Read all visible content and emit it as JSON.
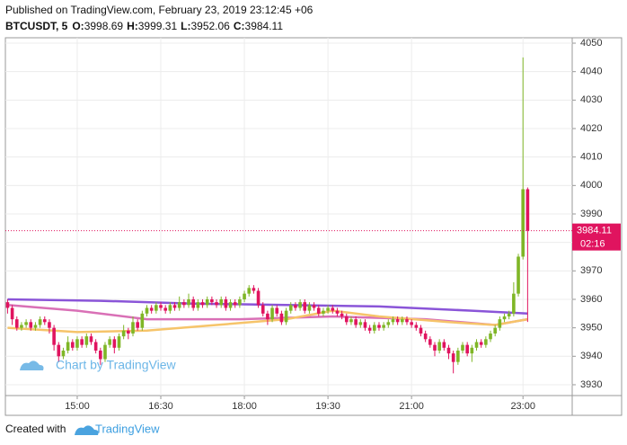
{
  "chart_data": {
    "type": "candlestick",
    "published": "Published on TradingView.com, February 23, 2019 23:12:45 +06",
    "symbol": "BTCUSDT, 5",
    "ohlc_labels": [
      "O:",
      "H:",
      "L:",
      "C:"
    ],
    "countdown": "02:16",
    "watermark": "Chart by TradingView",
    "footer": {
      "created_with": "Created with",
      "brand": "TradingView"
    },
    "up_color": "#7fb626",
    "down_color": "#e0145f",
    "xlim": [
      -0.47,
      121.6
    ],
    "xticks": [
      {
        "value": 15,
        "label": "15:00"
      },
      {
        "value": 33,
        "label": "16:30"
      },
      {
        "value": 51,
        "label": "18:00"
      },
      {
        "value": 69,
        "label": "19:30"
      },
      {
        "value": 87,
        "label": "21:00"
      },
      {
        "value": 111,
        "label": "23:00"
      }
    ],
    "ylim": [
      3926.2,
      4051.9
    ],
    "yticks": [
      3930,
      3940,
      3950,
      3960,
      3970,
      3980,
      3990,
      4000,
      4010,
      4020,
      4030,
      4040,
      4050
    ],
    "grid": true,
    "candles": [
      [
        3959,
        3960,
        3955,
        3957
      ],
      [
        3957,
        3958,
        3951,
        3953
      ],
      [
        3953,
        3954,
        3949,
        3950
      ],
      [
        3950,
        3952,
        3949,
        3951
      ],
      [
        3951,
        3953,
        3950,
        3952
      ],
      [
        3952,
        3953,
        3949,
        3950
      ],
      [
        3950,
        3952,
        3949,
        3951
      ],
      [
        3951,
        3954,
        3950,
        3953
      ],
      [
        3953,
        3954,
        3951,
        3952
      ],
      [
        3952,
        3953,
        3948,
        3950
      ],
      [
        3950,
        3951,
        3942,
        3944
      ],
      [
        3944,
        3945,
        3938,
        3940
      ],
      [
        3940,
        3943,
        3939,
        3942
      ],
      [
        3942,
        3947,
        3941,
        3945
      ],
      [
        3945,
        3946,
        3942,
        3943
      ],
      [
        3943,
        3947,
        3942,
        3946
      ],
      [
        3946,
        3947,
        3943,
        3944
      ],
      [
        3944,
        3948,
        3943,
        3947
      ],
      [
        3947,
        3948,
        3944,
        3945
      ],
      [
        3945,
        3946,
        3941,
        3942
      ],
      [
        3942,
        3943,
        3937,
        3939
      ],
      [
        3939,
        3945,
        3938,
        3944
      ],
      [
        3944,
        3947,
        3943,
        3946
      ],
      [
        3946,
        3947,
        3941,
        3943
      ],
      [
        3943,
        3948,
        3942,
        3947
      ],
      [
        3947,
        3951,
        3946,
        3949
      ],
      [
        3949,
        3950,
        3946,
        3948
      ],
      [
        3948,
        3954,
        3947,
        3952
      ],
      [
        3952,
        3953,
        3949,
        3950
      ],
      [
        3950,
        3956,
        3949,
        3955
      ],
      [
        3955,
        3958,
        3954,
        3957
      ],
      [
        3957,
        3958,
        3955,
        3956
      ],
      [
        3956,
        3959,
        3955,
        3958
      ],
      [
        3958,
        3959,
        3956,
        3957
      ],
      [
        3957,
        3958,
        3955,
        3956
      ],
      [
        3956,
        3959,
        3955,
        3958
      ],
      [
        3958,
        3959,
        3956,
        3957
      ],
      [
        3957,
        3961,
        3956,
        3959
      ],
      [
        3959,
        3960,
        3957,
        3958
      ],
      [
        3958,
        3962,
        3957,
        3960
      ],
      [
        3960,
        3961,
        3956,
        3957
      ],
      [
        3957,
        3960,
        3956,
        3959
      ],
      [
        3959,
        3960,
        3957,
        3958
      ],
      [
        3958,
        3961,
        3957,
        3960
      ],
      [
        3960,
        3961,
        3958,
        3959
      ],
      [
        3959,
        3960,
        3957,
        3958
      ],
      [
        3958,
        3961,
        3957,
        3960
      ],
      [
        3960,
        3961,
        3956,
        3957
      ],
      [
        3957,
        3960,
        3956,
        3959
      ],
      [
        3959,
        3960,
        3957,
        3958
      ],
      [
        3958,
        3961,
        3957,
        3960
      ],
      [
        3960,
        3963,
        3959,
        3962
      ],
      [
        3962,
        3965,
        3961,
        3964
      ],
      [
        3964,
        3965,
        3962,
        3963
      ],
      [
        3963,
        3964,
        3957,
        3958
      ],
      [
        3958,
        3959,
        3954,
        3955
      ],
      [
        3955,
        3956,
        3951,
        3953
      ],
      [
        3953,
        3958,
        3952,
        3957
      ],
      [
        3957,
        3958,
        3954,
        3955
      ],
      [
        3955,
        3956,
        3951,
        3952
      ],
      [
        3952,
        3957,
        3951,
        3956
      ],
      [
        3956,
        3959,
        3955,
        3958
      ],
      [
        3958,
        3959,
        3956,
        3957
      ],
      [
        3957,
        3960,
        3956,
        3959
      ],
      [
        3959,
        3960,
        3955,
        3956
      ],
      [
        3956,
        3959,
        3955,
        3958
      ],
      [
        3958,
        3959,
        3956,
        3957
      ],
      [
        3957,
        3958,
        3954,
        3955
      ],
      [
        3955,
        3957,
        3954,
        3956
      ],
      [
        3956,
        3958,
        3955,
        3957
      ],
      [
        3957,
        3958,
        3955,
        3956
      ],
      [
        3956,
        3957,
        3954,
        3955
      ],
      [
        3955,
        3956,
        3953,
        3954
      ],
      [
        3954,
        3955,
        3951,
        3952
      ],
      [
        3952,
        3954,
        3951,
        3953
      ],
      [
        3953,
        3954,
        3950,
        3951
      ],
      [
        3951,
        3953,
        3950,
        3952
      ],
      [
        3952,
        3953,
        3949,
        3950
      ],
      [
        3950,
        3951,
        3948,
        3949
      ],
      [
        3949,
        3952,
        3948,
        3951
      ],
      [
        3951,
        3952,
        3949,
        3950
      ],
      [
        3950,
        3952,
        3949,
        3951
      ],
      [
        3951,
        3953,
        3950,
        3952
      ],
      [
        3952,
        3954,
        3951,
        3953
      ],
      [
        3953,
        3954,
        3951,
        3952
      ],
      [
        3952,
        3954,
        3951,
        3953
      ],
      [
        3953,
        3954,
        3951,
        3952
      ],
      [
        3952,
        3953,
        3950,
        3951
      ],
      [
        3951,
        3952,
        3949,
        3950
      ],
      [
        3950,
        3951,
        3947,
        3948
      ],
      [
        3948,
        3949,
        3945,
        3946
      ],
      [
        3946,
        3947,
        3943,
        3944
      ],
      [
        3944,
        3945,
        3940,
        3942
      ],
      [
        3942,
        3946,
        3941,
        3945
      ],
      [
        3945,
        3946,
        3942,
        3943
      ],
      [
        3943,
        3944,
        3939,
        3941
      ],
      [
        3941,
        3942,
        3934,
        3938
      ],
      [
        3938,
        3943,
        3937,
        3942
      ],
      [
        3942,
        3945,
        3941,
        3944
      ],
      [
        3944,
        3945,
        3940,
        3941
      ],
      [
        3941,
        3944,
        3938,
        3943
      ],
      [
        3943,
        3946,
        3942,
        3945
      ],
      [
        3945,
        3946,
        3943,
        3944
      ],
      [
        3944,
        3947,
        3943,
        3946
      ],
      [
        3946,
        3949,
        3945,
        3948
      ],
      [
        3948,
        3951,
        3947,
        3950
      ],
      [
        3950,
        3954,
        3949,
        3953
      ],
      [
        3953,
        3955,
        3952,
        3954
      ],
      [
        3954,
        3956,
        3953,
        3955
      ],
      [
        3955,
        3966,
        3954,
        3962
      ],
      [
        3962,
        3976,
        3961,
        3975
      ],
      [
        3975,
        4045,
        3974,
        3998.69
      ],
      [
        3998.69,
        3999.31,
        3952.06,
        3984.11
      ]
    ],
    "lines": [
      {
        "color": "#8a55d8",
        "x": [
          0,
          20,
          40,
          60,
          80,
          100,
          112
        ],
        "values": [
          3960,
          3959.5,
          3958.5,
          3958,
          3957.5,
          3956,
          3955
        ]
      },
      {
        "color": "#d970b6",
        "x": [
          0,
          15,
          30,
          50,
          70,
          90,
          105,
          112
        ],
        "values": [
          3958,
          3956,
          3953,
          3953,
          3954,
          3953,
          3951,
          3953
        ]
      },
      {
        "color": "#f6c46a",
        "x": [
          0,
          15,
          30,
          45,
          60,
          70,
          80,
          95,
          105,
          112
        ],
        "values": [
          3950,
          3948.5,
          3949,
          3951,
          3953,
          3956,
          3954,
          3952,
          3951,
          3953
        ]
      }
    ]
  }
}
